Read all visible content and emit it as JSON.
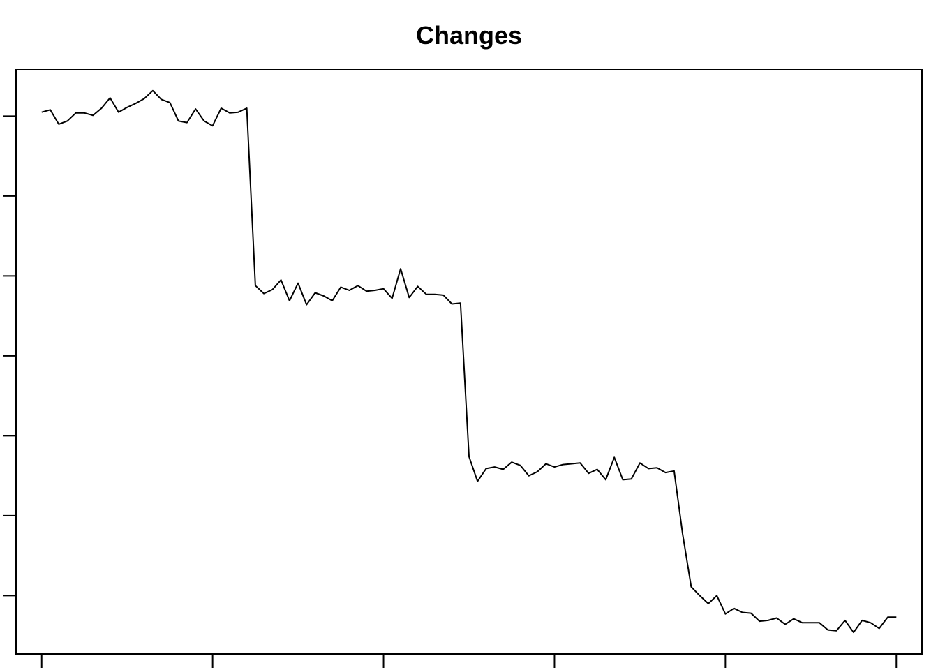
{
  "chart_data": {
    "type": "line",
    "title": "Changes",
    "xlabel": "",
    "ylabel": "",
    "xlim": [
      -3,
      103
    ],
    "ylim": [
      -7.3,
      65.8
    ],
    "x_ticks": [
      0,
      20,
      40,
      60,
      80,
      100
    ],
    "y_ticks": [
      0,
      10,
      20,
      30,
      40,
      50,
      60
    ],
    "grid": false,
    "series": [
      {
        "color": "#000000",
        "x": [
          0,
          1,
          2,
          3,
          4,
          5,
          6,
          7,
          8,
          9,
          10,
          11,
          12,
          13,
          14,
          15,
          16,
          17,
          18,
          19,
          20,
          21,
          22,
          23,
          24,
          25,
          26,
          27,
          28,
          29,
          30,
          31,
          32,
          33,
          34,
          35,
          36,
          37,
          38,
          39,
          40,
          41,
          42,
          43,
          44,
          45,
          46,
          47,
          48,
          49,
          50,
          51,
          52,
          53,
          54,
          55,
          56,
          57,
          58,
          59,
          60,
          61,
          62,
          63,
          64,
          65,
          66,
          67,
          68,
          69,
          70,
          71,
          72,
          73,
          74,
          75,
          76,
          77,
          78,
          79,
          80,
          81,
          82,
          83,
          84,
          85,
          86,
          87,
          88,
          89,
          90,
          91,
          92,
          93,
          94,
          95,
          96,
          97,
          98,
          99,
          100
        ],
        "values": [
          60.5,
          60.8,
          59.0,
          59.4,
          60.4,
          60.4,
          60.1,
          61.0,
          62.3,
          60.5,
          61.1,
          61.6,
          62.2,
          63.2,
          62.1,
          61.7,
          59.4,
          59.2,
          60.9,
          59.4,
          58.8,
          61.0,
          60.4,
          60.5,
          61.0,
          38.8,
          37.8,
          38.3,
          39.5,
          36.9,
          39.1,
          36.4,
          37.9,
          37.5,
          36.9,
          38.6,
          38.2,
          38.8,
          38.1,
          38.2,
          38.4,
          37.2,
          40.9,
          37.3,
          38.7,
          37.7,
          37.7,
          37.6,
          36.5,
          36.6,
          17.4,
          14.3,
          15.9,
          16.1,
          15.8,
          16.7,
          16.3,
          15.0,
          15.5,
          16.5,
          16.1,
          16.4,
          16.5,
          16.6,
          15.3,
          15.8,
          14.5,
          17.3,
          14.5,
          14.6,
          16.6,
          15.9,
          16.0,
          15.4,
          15.6,
          7.7,
          1.1,
          0.0,
          -1.0,
          0.0,
          -2.3,
          -1.6,
          -2.1,
          -2.2,
          -3.2,
          -3.1,
          -2.8,
          -3.6,
          -2.9,
          -3.4,
          -3.4,
          -3.4,
          -4.3,
          -4.4,
          -3.1,
          -4.6,
          -3.1,
          -3.4,
          -4.1,
          -2.7,
          -2.7
        ]
      }
    ]
  }
}
